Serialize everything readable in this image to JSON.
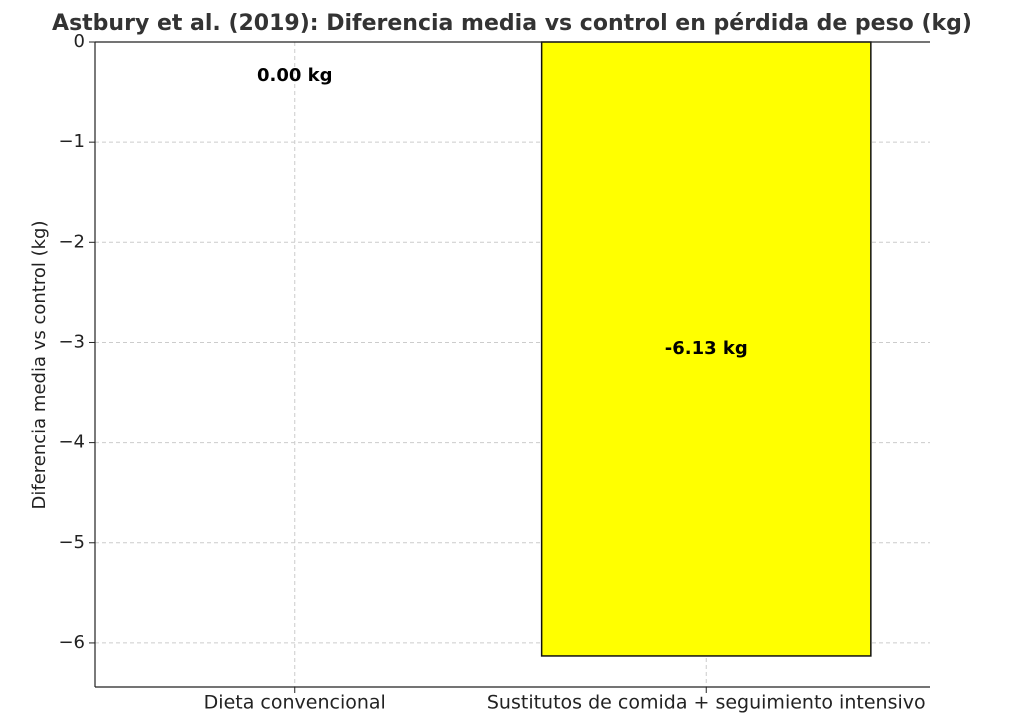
{
  "chart_data": {
    "type": "bar",
    "title": "Astbury et al. (2019): Diferencia media vs control en pérdida de peso (kg)",
    "y_label": "Diferencia media vs control (kg)",
    "categories": [
      "Dieta convencional",
      "Sustitutos de comida + seguimiento intensivo"
    ],
    "values": [
      0,
      -6.13
    ],
    "value_labels": [
      "0.00 kg",
      "-6.13 kg"
    ],
    "color": "#ffff00",
    "ylim": [
      -6.44,
      0
    ],
    "yticks": [
      0,
      {
        "value": -1,
        "label": "−1"
      },
      {
        "value": -2,
        "label": "−2"
      },
      {
        "value": -3,
        "label": "−3"
      },
      {
        "value": -4,
        "label": "−4"
      },
      {
        "value": -5,
        "label": "−5"
      },
      {
        "value": -6,
        "label": "−6"
      }
    ],
    "grid": true
  }
}
